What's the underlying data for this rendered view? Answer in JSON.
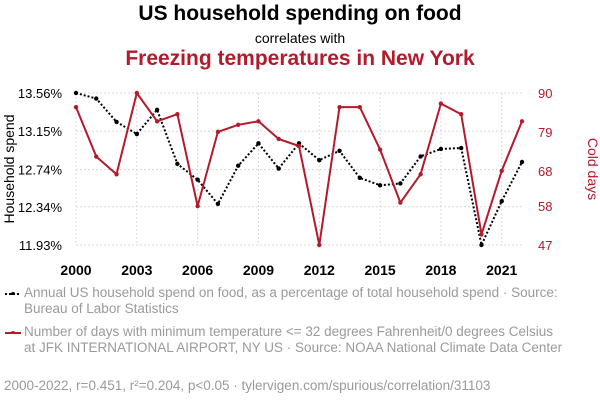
{
  "chart_data": {
    "type": "line",
    "title": "US household spending on food",
    "subtitle_connector": "correlates with",
    "subtitle": "Freezing temperatures in New York",
    "x": [
      2000,
      2001,
      2002,
      2003,
      2004,
      2005,
      2006,
      2007,
      2008,
      2009,
      2010,
      2011,
      2012,
      2013,
      2014,
      2015,
      2016,
      2017,
      2018,
      2019,
      2020,
      2021,
      2022
    ],
    "x_ticks": [
      "2000",
      "2003",
      "2006",
      "2009",
      "2012",
      "2015",
      "2018",
      "2021"
    ],
    "xlim": [
      2000,
      2022
    ],
    "series": [
      {
        "name": "Annual US household spend on food, as a percentage of total household spend · Source: Bureau of Labor Statistics",
        "axis": "left",
        "color": "#000000",
        "style": "dotted",
        "values": [
          13.56,
          13.5,
          13.25,
          13.12,
          13.38,
          12.8,
          12.63,
          12.37,
          12.78,
          13.02,
          12.75,
          13.02,
          12.84,
          12.94,
          12.65,
          12.57,
          12.59,
          12.88,
          12.96,
          12.97,
          11.93,
          12.4,
          12.82
        ]
      },
      {
        "name": "Number of days with minimum temperature <= 32 degrees Fahrenheit/0 degrees Celsius at JFK INTERNATIONAL AIRPORT, NY US · Source: NOAA National Climate Data Center",
        "axis": "right",
        "color": "#b31b2c",
        "style": "solid",
        "values": [
          86,
          72,
          67,
          90,
          82,
          84,
          58,
          79,
          81,
          82,
          77,
          75,
          47,
          86,
          86,
          74,
          59,
          67,
          87,
          84,
          50,
          68,
          82
        ]
      }
    ],
    "left_axis": {
      "label": "Household spend",
      "ticks": [
        "11.93%",
        "12.34%",
        "12.74%",
        "13.15%",
        "13.56%"
      ],
      "tick_values": [
        11.93,
        12.34,
        12.74,
        13.15,
        13.56
      ],
      "ylim": [
        11.93,
        13.56
      ]
    },
    "right_axis": {
      "label": "Cold days",
      "ticks": [
        "47",
        "58",
        "68",
        "79",
        "90"
      ],
      "tick_values": [
        47,
        58,
        68,
        79,
        90
      ],
      "ylim": [
        47,
        90
      ]
    }
  },
  "footer": "2000-2022, r=0.451, r²=0.204, p<0.05 · tylervigen.com/spurious/correlation/31103"
}
